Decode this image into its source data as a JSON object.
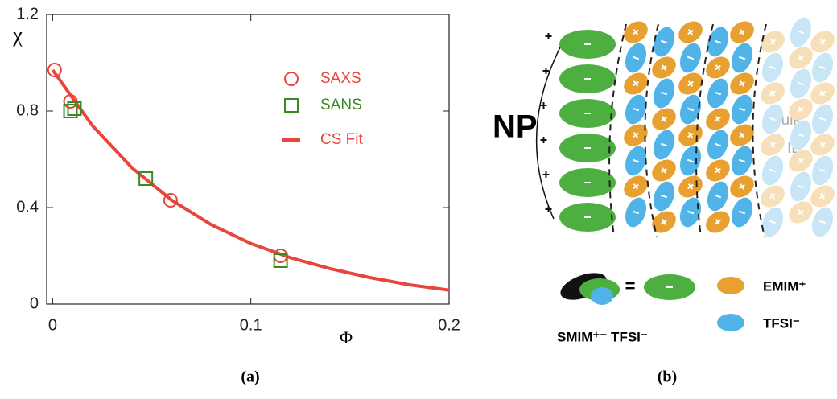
{
  "chart_data": {
    "type": "scatter",
    "x_label": "Φ",
    "y_label": "χ",
    "xlim": [
      -0.003,
      0.2
    ],
    "ylim": [
      0,
      1.2
    ],
    "xticks": [
      0,
      0.1,
      0.2
    ],
    "yticks": [
      0,
      0.4,
      0.8,
      1.2
    ],
    "series": [
      {
        "name": "SAXS",
        "kind": "scatter",
        "marker": "circle",
        "color": "#e8453c",
        "x": [
          0.001,
          0.009,
          0.0595,
          0.115
        ],
        "values": [
          0.97,
          0.84,
          0.43,
          0.2
        ]
      },
      {
        "name": "SANS",
        "kind": "scatter",
        "marker": "square",
        "color": "#3a8a22",
        "x": [
          0.009,
          0.011,
          0.047,
          0.115
        ],
        "values": [
          0.8,
          0.81,
          0.52,
          0.18
        ]
      },
      {
        "name": "CS Fit",
        "kind": "line",
        "color": "#e8453c",
        "x": [
          0,
          0.02,
          0.04,
          0.06,
          0.08,
          0.1,
          0.12,
          0.14,
          0.16,
          0.18,
          0.2
        ],
        "values": [
          0.97,
          0.74,
          0.565,
          0.431,
          0.329,
          0.251,
          0.192,
          0.147,
          0.11,
          0.08,
          0.058
        ]
      }
    ]
  },
  "caption_a": "(a)",
  "caption_b": "(b)",
  "diagram": {
    "np": "NP",
    "bulk": "Bulk",
    "il": "IL",
    "equals": "=",
    "emim": "EMIM⁺",
    "tfsi": "TFSI⁻",
    "smim": "SMIM⁺⁻ TFSI⁻"
  }
}
